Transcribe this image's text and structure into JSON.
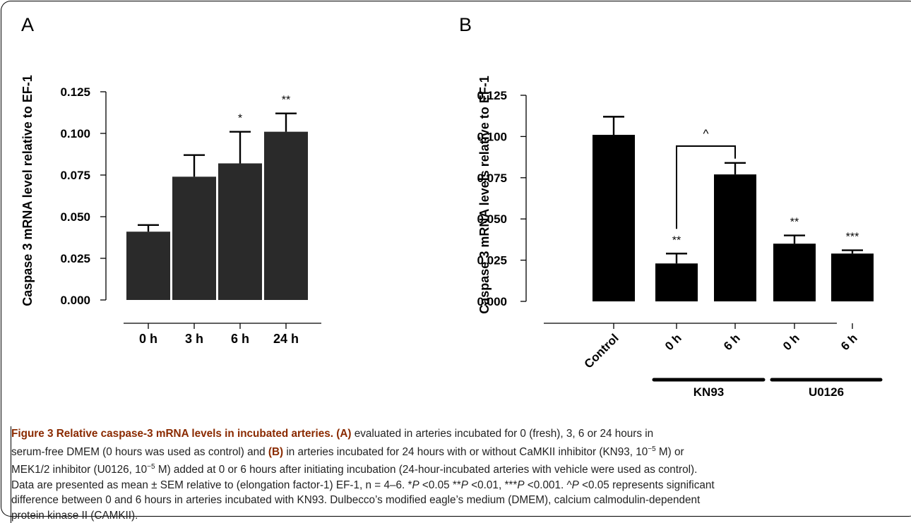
{
  "chart_data": [
    {
      "panel": "A",
      "type": "bar",
      "ylabel": "Caspase 3 mRNA level relative to EF-1",
      "ylim": [
        0,
        0.125
      ],
      "yticks": [
        "0.000",
        "0.025",
        "0.050",
        "0.075",
        "0.100",
        "0.125"
      ],
      "categories": [
        "0 h",
        "3 h",
        "6 h",
        "24 h"
      ],
      "values": [
        0.041,
        0.074,
        0.082,
        0.101
      ],
      "errors": [
        0.004,
        0.013,
        0.019,
        0.011
      ],
      "significance": [
        "",
        "",
        "*",
        "**"
      ],
      "bar_color": "#2a2a2a"
    },
    {
      "panel": "B",
      "type": "bar",
      "ylabel": "Caspase 3 mRNA levels relative to EF-1",
      "ylim": [
        0,
        0.125
      ],
      "yticks": [
        "0.000",
        "0.025",
        "0.050",
        "0.075",
        "0.100",
        "0.125"
      ],
      "categories": [
        "Control",
        "0 h",
        "6 h",
        "0 h",
        "6 h"
      ],
      "values": [
        0.101,
        0.023,
        0.077,
        0.035,
        0.029
      ],
      "errors": [
        0.011,
        0.006,
        0.007,
        0.005,
        0.002
      ],
      "significance": [
        "",
        "**",
        "",
        "**",
        "***"
      ],
      "groups": [
        {
          "label": "KN93",
          "members": [
            1,
            2
          ]
        },
        {
          "label": "U0126",
          "members": [
            3,
            4
          ]
        }
      ],
      "bracket": {
        "from": 1,
        "to": 2,
        "label": "^"
      },
      "bar_color": "#000000"
    }
  ],
  "caption": {
    "title": "Figure 3 Relative caspase-3 mRNA levels in incubated arteries.",
    "lines": [
      [
        {
          "b": "(A)"
        },
        {
          "t": " evaluated in arteries incubated for 0 (fresh), 3, 6 or 24 hours in"
        }
      ],
      [
        {
          "t": "serum-free DMEM (0 hours was used as control) and "
        },
        {
          "b": "(B)"
        },
        {
          "t": " in arteries incubated for 24 hours with or without CaMKII inhibitor (KN93, 10"
        },
        {
          "sup": "−5"
        },
        {
          "t": " M) or"
        }
      ],
      [
        {
          "t": "MEK1/2 inhibitor (U0126, 10"
        },
        {
          "sup": "−5"
        },
        {
          "t": " M) added at 0 or 6 hours after initiating incubation (24-hour-incubated arteries with vehicle were used as control)."
        }
      ],
      [
        {
          "t": "Data are presented as mean ± SEM relative to (elongation factor-1) EF-1, n = 4–6. *"
        },
        {
          "i": "P"
        },
        {
          "t": " <0.05 **"
        },
        {
          "i": "P"
        },
        {
          "t": " <0.01, ***"
        },
        {
          "i": "P"
        },
        {
          "t": " <0.001. ^"
        },
        {
          "i": "P"
        },
        {
          "t": " <0.05 represents significant"
        }
      ],
      [
        {
          "t": "difference between 0 and 6 hours in arteries incubated with KN93. Dulbecco’s modified eagle’s medium (DMEM), calcium calmodulin-dependent"
        }
      ],
      [
        {
          "t": "protein kinase II (CAMKII)."
        }
      ]
    ]
  }
}
